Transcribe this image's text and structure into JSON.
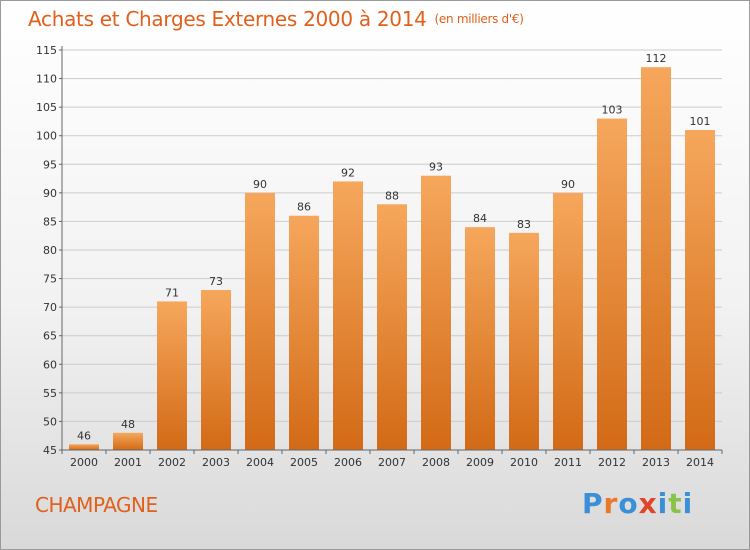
{
  "header": {
    "title": "Achats et Charges Externes 2000 à 2014",
    "unit": "(en milliers d'€)"
  },
  "commune": "CHAMPAGNE",
  "logo": {
    "text": "Proxiti",
    "colors": [
      "#3a8fd8",
      "#e8792a",
      "#3a8fd8",
      "#e0452a",
      "#3a8fd8",
      "#8bc34a",
      "#3a8fd8"
    ]
  },
  "colors": {
    "accent": "#e0601c",
    "bar_top": "#f6a75c",
    "bar_bottom": "#d26a16",
    "grid": "#cccccc"
  },
  "chart_data": {
    "type": "bar",
    "categories": [
      "2000",
      "2001",
      "2002",
      "2003",
      "2004",
      "2005",
      "2006",
      "2007",
      "2008",
      "2009",
      "2010",
      "2011",
      "2012",
      "2013",
      "2014"
    ],
    "values": [
      46,
      48,
      71,
      73,
      90,
      86,
      92,
      88,
      93,
      84,
      83,
      90,
      103,
      112,
      101
    ],
    "title": "Achats et Charges Externes 2000 à 2014",
    "subtitle": "(en milliers d'€)",
    "ylim": [
      45,
      115
    ],
    "yticks": [
      45,
      50,
      55,
      60,
      65,
      70,
      75,
      80,
      85,
      90,
      95,
      100,
      105,
      110,
      115
    ],
    "grid": true,
    "legend": "none"
  }
}
